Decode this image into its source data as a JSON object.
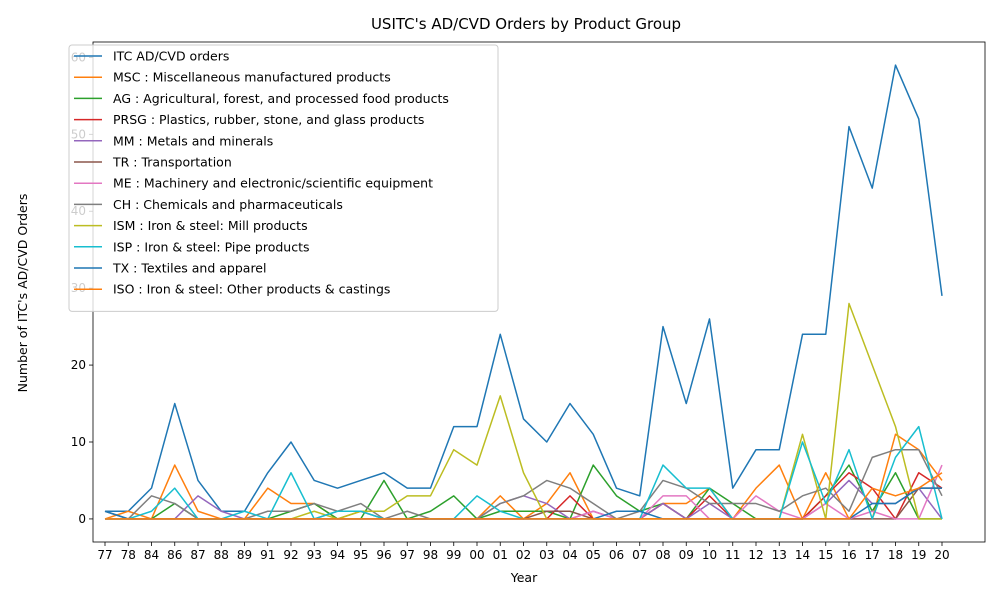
{
  "chart_data": {
    "type": "line",
    "title": "USITC's AD/CVD Orders by Product Group",
    "xlabel": "Year",
    "ylabel": "Number of ITC's AD/CVD Orders",
    "x": [
      "77",
      "78",
      "84",
      "86",
      "87",
      "88",
      "89",
      "91",
      "92",
      "93",
      "94",
      "95",
      "96",
      "97",
      "98",
      "99",
      "00",
      "01",
      "02",
      "03",
      "04",
      "05",
      "06",
      "07",
      "08",
      "09",
      "10",
      "11",
      "12",
      "13",
      "14",
      "15",
      "16",
      "17",
      "18",
      "19",
      "20"
    ],
    "ylim": [
      -3,
      62
    ],
    "yticks": [
      0,
      10,
      20,
      30,
      40,
      50,
      60
    ],
    "grid": false,
    "legend": "top-left",
    "series": [
      {
        "name": "ITC AD/CVD orders",
        "color": "#1f77b4",
        "values": [
          1,
          1,
          4,
          15,
          5,
          1,
          1,
          6,
          10,
          5,
          4,
          5,
          6,
          4,
          4,
          12,
          12,
          24,
          13,
          10,
          15,
          11,
          4,
          3,
          25,
          15,
          26,
          4,
          9,
          9,
          24,
          24,
          51,
          43,
          59,
          52,
          29
        ]
      },
      {
        "name": "MSC : Miscellaneous manufactured products",
        "color": "#ff7f0e",
        "values": [
          0,
          1,
          0,
          7,
          1,
          0,
          0,
          4,
          2,
          2,
          0,
          1,
          0,
          0,
          0,
          0,
          0,
          3,
          0,
          2,
          6,
          0,
          0,
          0,
          2,
          2,
          4,
          0,
          4,
          7,
          0,
          6,
          0,
          0,
          11,
          9,
          5
        ]
      },
      {
        "name": "AG : Agricultural, forest,  and processed food products",
        "color": "#2ca02c",
        "values": [
          0,
          0,
          0,
          2,
          0,
          0,
          0,
          0,
          1,
          2,
          0,
          0,
          5,
          0,
          1,
          3,
          0,
          1,
          1,
          1,
          0,
          7,
          3,
          1,
          2,
          0,
          4,
          2,
          0,
          0,
          0,
          3,
          7,
          1,
          6,
          0,
          0
        ]
      },
      {
        "name": "PRSG : Plastics, rubber, stone, and glass products",
        "color": "#d62728",
        "values": [
          0,
          0,
          0,
          0,
          0,
          0,
          0,
          0,
          0,
          0,
          0,
          0,
          0,
          0,
          0,
          0,
          0,
          0,
          0,
          0,
          3,
          0,
          0,
          0,
          2,
          0,
          3,
          0,
          0,
          0,
          0,
          3,
          6,
          4,
          0,
          6,
          4
        ]
      },
      {
        "name": "MM : Metals and minerals",
        "color": "#9467bd",
        "values": [
          0,
          0,
          0,
          0,
          3,
          1,
          0,
          0,
          0,
          0,
          1,
          1,
          0,
          0,
          0,
          0,
          0,
          2,
          3,
          2,
          0,
          1,
          0,
          0,
          2,
          0,
          2,
          0,
          0,
          0,
          0,
          2,
          5,
          2,
          2,
          4,
          0
        ]
      },
      {
        "name": "TR : Transportation",
        "color": "#8c564b",
        "values": [
          0,
          0,
          0,
          0,
          0,
          0,
          0,
          0,
          0,
          0,
          0,
          0,
          0,
          0,
          0,
          0,
          0,
          0,
          0,
          1,
          1,
          0,
          0,
          0,
          0,
          0,
          0,
          0,
          0,
          0,
          0,
          0,
          0,
          0,
          0,
          4,
          4
        ]
      },
      {
        "name": "ME : Machinery and electronic/scientific equipment",
        "color": "#e377c2",
        "values": [
          0,
          0,
          0,
          0,
          0,
          0,
          0,
          0,
          0,
          0,
          0,
          0,
          0,
          0,
          0,
          0,
          0,
          0,
          0,
          0,
          0,
          1,
          0,
          0,
          3,
          3,
          0,
          0,
          3,
          1,
          0,
          2,
          0,
          1,
          0,
          0,
          7
        ]
      },
      {
        "name": "CH : Chemicals and pharmaceuticals",
        "color": "#7f7f7f",
        "values": [
          1,
          0,
          3,
          2,
          0,
          0,
          0,
          1,
          1,
          2,
          1,
          2,
          0,
          1,
          0,
          0,
          0,
          2,
          3,
          5,
          4,
          2,
          0,
          1,
          5,
          4,
          2,
          2,
          2,
          1,
          3,
          4,
          1,
          8,
          9,
          9,
          3
        ]
      },
      {
        "name": "ISM : Iron & steel:  Mill products",
        "color": "#bcbd22",
        "values": [
          0,
          0,
          0,
          0,
          0,
          0,
          0,
          0,
          0,
          1,
          0,
          1,
          1,
          3,
          3,
          9,
          7,
          16,
          6,
          0,
          0,
          0,
          0,
          0,
          0,
          0,
          0,
          0,
          0,
          0,
          11,
          0,
          28,
          20,
          12,
          0,
          0
        ]
      },
      {
        "name": "ISP : Iron & steel:  Pipe products",
        "color": "#17becf",
        "values": [
          0,
          0,
          1,
          4,
          0,
          0,
          1,
          0,
          6,
          0,
          1,
          1,
          0,
          0,
          0,
          0,
          3,
          1,
          0,
          0,
          0,
          0,
          0,
          0,
          7,
          4,
          4,
          0,
          0,
          0,
          10,
          2,
          9,
          0,
          8,
          12,
          0
        ]
      },
      {
        "name": "TX : Textiles and apparel",
        "color": "#1f77b4",
        "values": [
          1,
          0,
          0,
          0,
          0,
          0,
          0,
          0,
          0,
          0,
          0,
          0,
          0,
          0,
          0,
          0,
          0,
          0,
          0,
          0,
          0,
          0,
          1,
          1,
          0,
          0,
          0,
          0,
          0,
          0,
          0,
          0,
          0,
          2,
          2,
          4,
          4
        ]
      },
      {
        "name": "ISO : Iron & steel:  Other products & castings",
        "color": "#ff7f0e",
        "values": [
          0,
          0,
          0,
          0,
          0,
          0,
          0,
          0,
          0,
          0,
          0,
          0,
          0,
          0,
          0,
          0,
          0,
          0,
          0,
          0,
          0,
          0,
          0,
          0,
          0,
          0,
          0,
          0,
          0,
          0,
          0,
          0,
          0,
          4,
          3,
          4,
          6
        ]
      }
    ]
  }
}
